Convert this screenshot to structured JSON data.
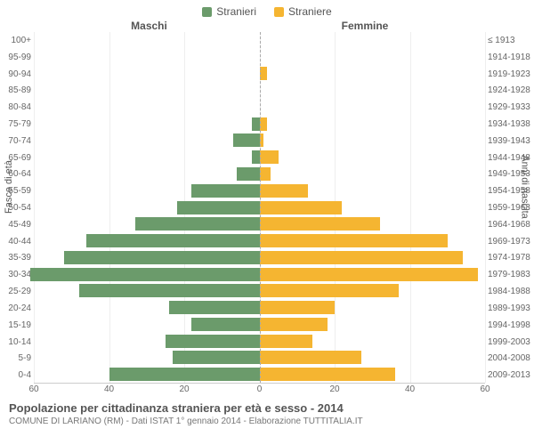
{
  "legend": {
    "male": {
      "label": "Stranieri",
      "color": "#6b9b6b"
    },
    "female": {
      "label": "Straniere",
      "color": "#f5b531"
    }
  },
  "headers": {
    "left": "Maschi",
    "right": "Femmine"
  },
  "y_left_title": "Fasce di età",
  "y_right_title": "Anni di nascita",
  "chart": {
    "type": "population-pyramid",
    "max_value": 60,
    "background_color": "#ffffff",
    "grid_color": "#eeeeee",
    "axis_color": "#aaaaaa",
    "bar_colors": {
      "male": "#6b9b6b",
      "female": "#f5b531"
    },
    "bar_height_pct": 80,
    "x_ticks": [
      60,
      40,
      20,
      0,
      20,
      40,
      60
    ],
    "rows": [
      {
        "age": "100+",
        "birth": "≤ 1913",
        "m": 0,
        "f": 0
      },
      {
        "age": "95-99",
        "birth": "1914-1918",
        "m": 0,
        "f": 0
      },
      {
        "age": "90-94",
        "birth": "1919-1923",
        "m": 0,
        "f": 2
      },
      {
        "age": "85-89",
        "birth": "1924-1928",
        "m": 0,
        "f": 0
      },
      {
        "age": "80-84",
        "birth": "1929-1933",
        "m": 0,
        "f": 0
      },
      {
        "age": "75-79",
        "birth": "1934-1938",
        "m": 2,
        "f": 2
      },
      {
        "age": "70-74",
        "birth": "1939-1943",
        "m": 7,
        "f": 1
      },
      {
        "age": "65-69",
        "birth": "1944-1948",
        "m": 2,
        "f": 5
      },
      {
        "age": "60-64",
        "birth": "1949-1953",
        "m": 6,
        "f": 3
      },
      {
        "age": "55-59",
        "birth": "1954-1958",
        "m": 18,
        "f": 13
      },
      {
        "age": "50-54",
        "birth": "1959-1963",
        "m": 22,
        "f": 22
      },
      {
        "age": "45-49",
        "birth": "1964-1968",
        "m": 33,
        "f": 32
      },
      {
        "age": "40-44",
        "birth": "1969-1973",
        "m": 46,
        "f": 50
      },
      {
        "age": "35-39",
        "birth": "1974-1978",
        "m": 52,
        "f": 54
      },
      {
        "age": "30-34",
        "birth": "1979-1983",
        "m": 61,
        "f": 58
      },
      {
        "age": "25-29",
        "birth": "1984-1988",
        "m": 48,
        "f": 37
      },
      {
        "age": "20-24",
        "birth": "1989-1993",
        "m": 24,
        "f": 20
      },
      {
        "age": "15-19",
        "birth": "1994-1998",
        "m": 18,
        "f": 18
      },
      {
        "age": "10-14",
        "birth": "1999-2003",
        "m": 25,
        "f": 14
      },
      {
        "age": "5-9",
        "birth": "2004-2008",
        "m": 23,
        "f": 27
      },
      {
        "age": "0-4",
        "birth": "2009-2013",
        "m": 40,
        "f": 36
      }
    ]
  },
  "footer": {
    "title": "Popolazione per cittadinanza straniera per età e sesso - 2014",
    "subtitle": "COMUNE DI LARIANO (RM) - Dati ISTAT 1° gennaio 2014 - Elaborazione TUTTITALIA.IT"
  }
}
